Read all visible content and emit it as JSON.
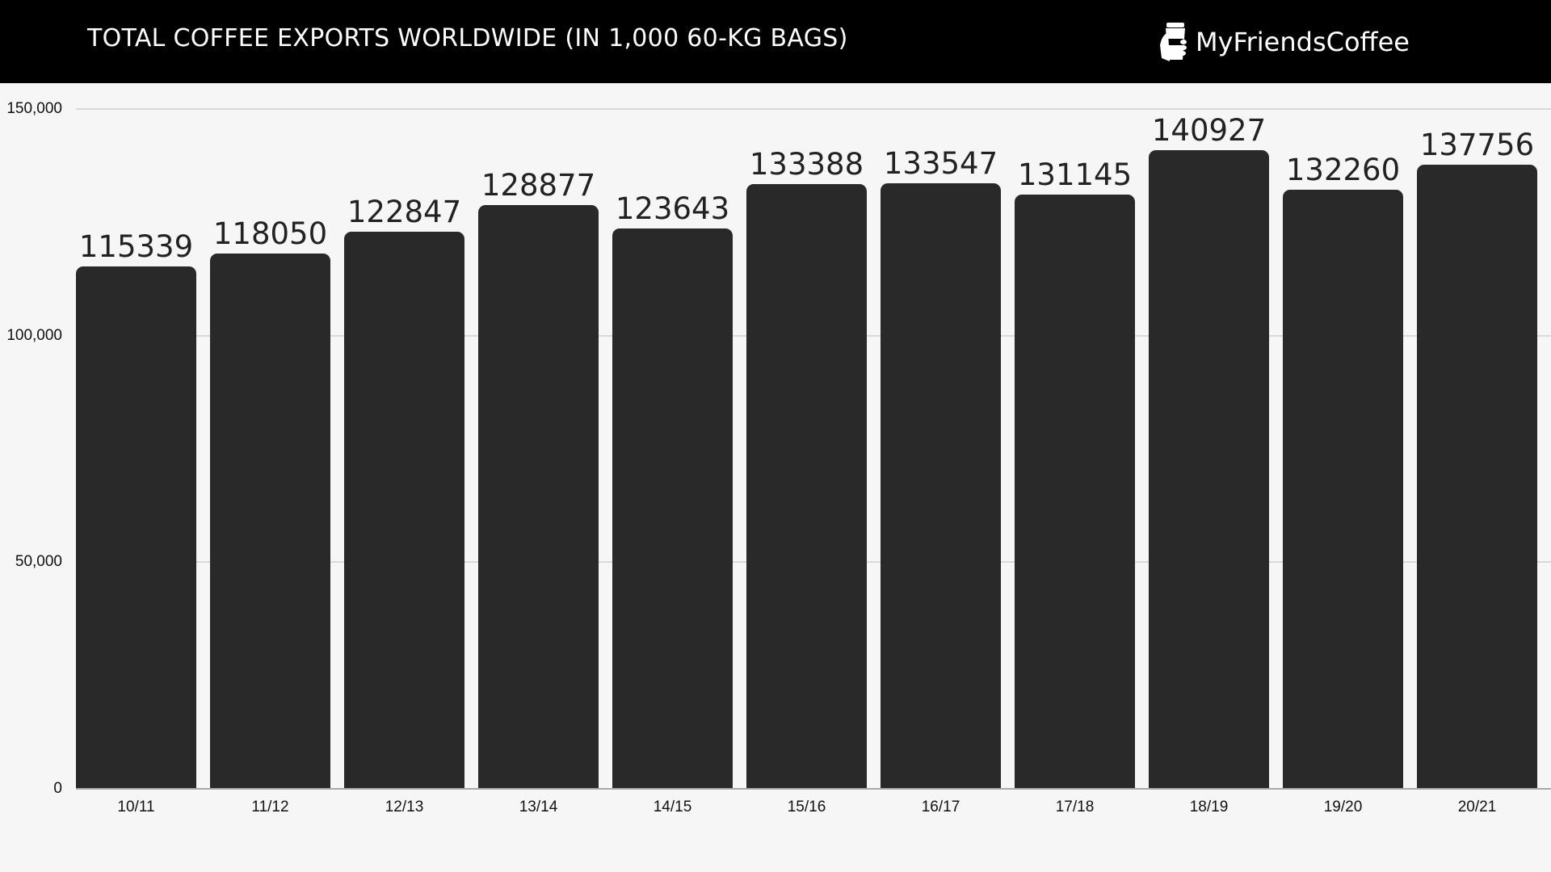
{
  "header": {
    "title": "TOTAL COFFEE EXPORTS WORLDWIDE (IN 1,000 60-KG BAGS)",
    "brand": "MyFriendsCoffee",
    "brand_icon": "coffee-cup-in-hand-icon"
  },
  "colors": {
    "header_bg": "#000000",
    "bar": "#292929",
    "background": "#f6f6f6",
    "gridline": "#d9d9d9"
  },
  "chart_data": {
    "type": "bar",
    "title": "TOTAL COFFEE EXPORTS WORLDWIDE (IN 1,000 60-KG BAGS)",
    "xlabel": "",
    "ylabel": "",
    "categories": [
      "10/11",
      "11/12",
      "12/13",
      "13/14",
      "14/15",
      "15/16",
      "16/17",
      "17/18",
      "18/19",
      "19/20",
      "20/21"
    ],
    "values": [
      115339,
      118050,
      122847,
      128877,
      123643,
      133388,
      133547,
      131145,
      140927,
      132260,
      137756
    ],
    "ylim": [
      0,
      150000
    ],
    "yticks": [
      0,
      50000,
      100000,
      150000
    ],
    "ytick_labels": [
      "0",
      "50,000",
      "100,000",
      "150,000"
    ],
    "grid": true,
    "legend": null,
    "data_labels": true
  }
}
